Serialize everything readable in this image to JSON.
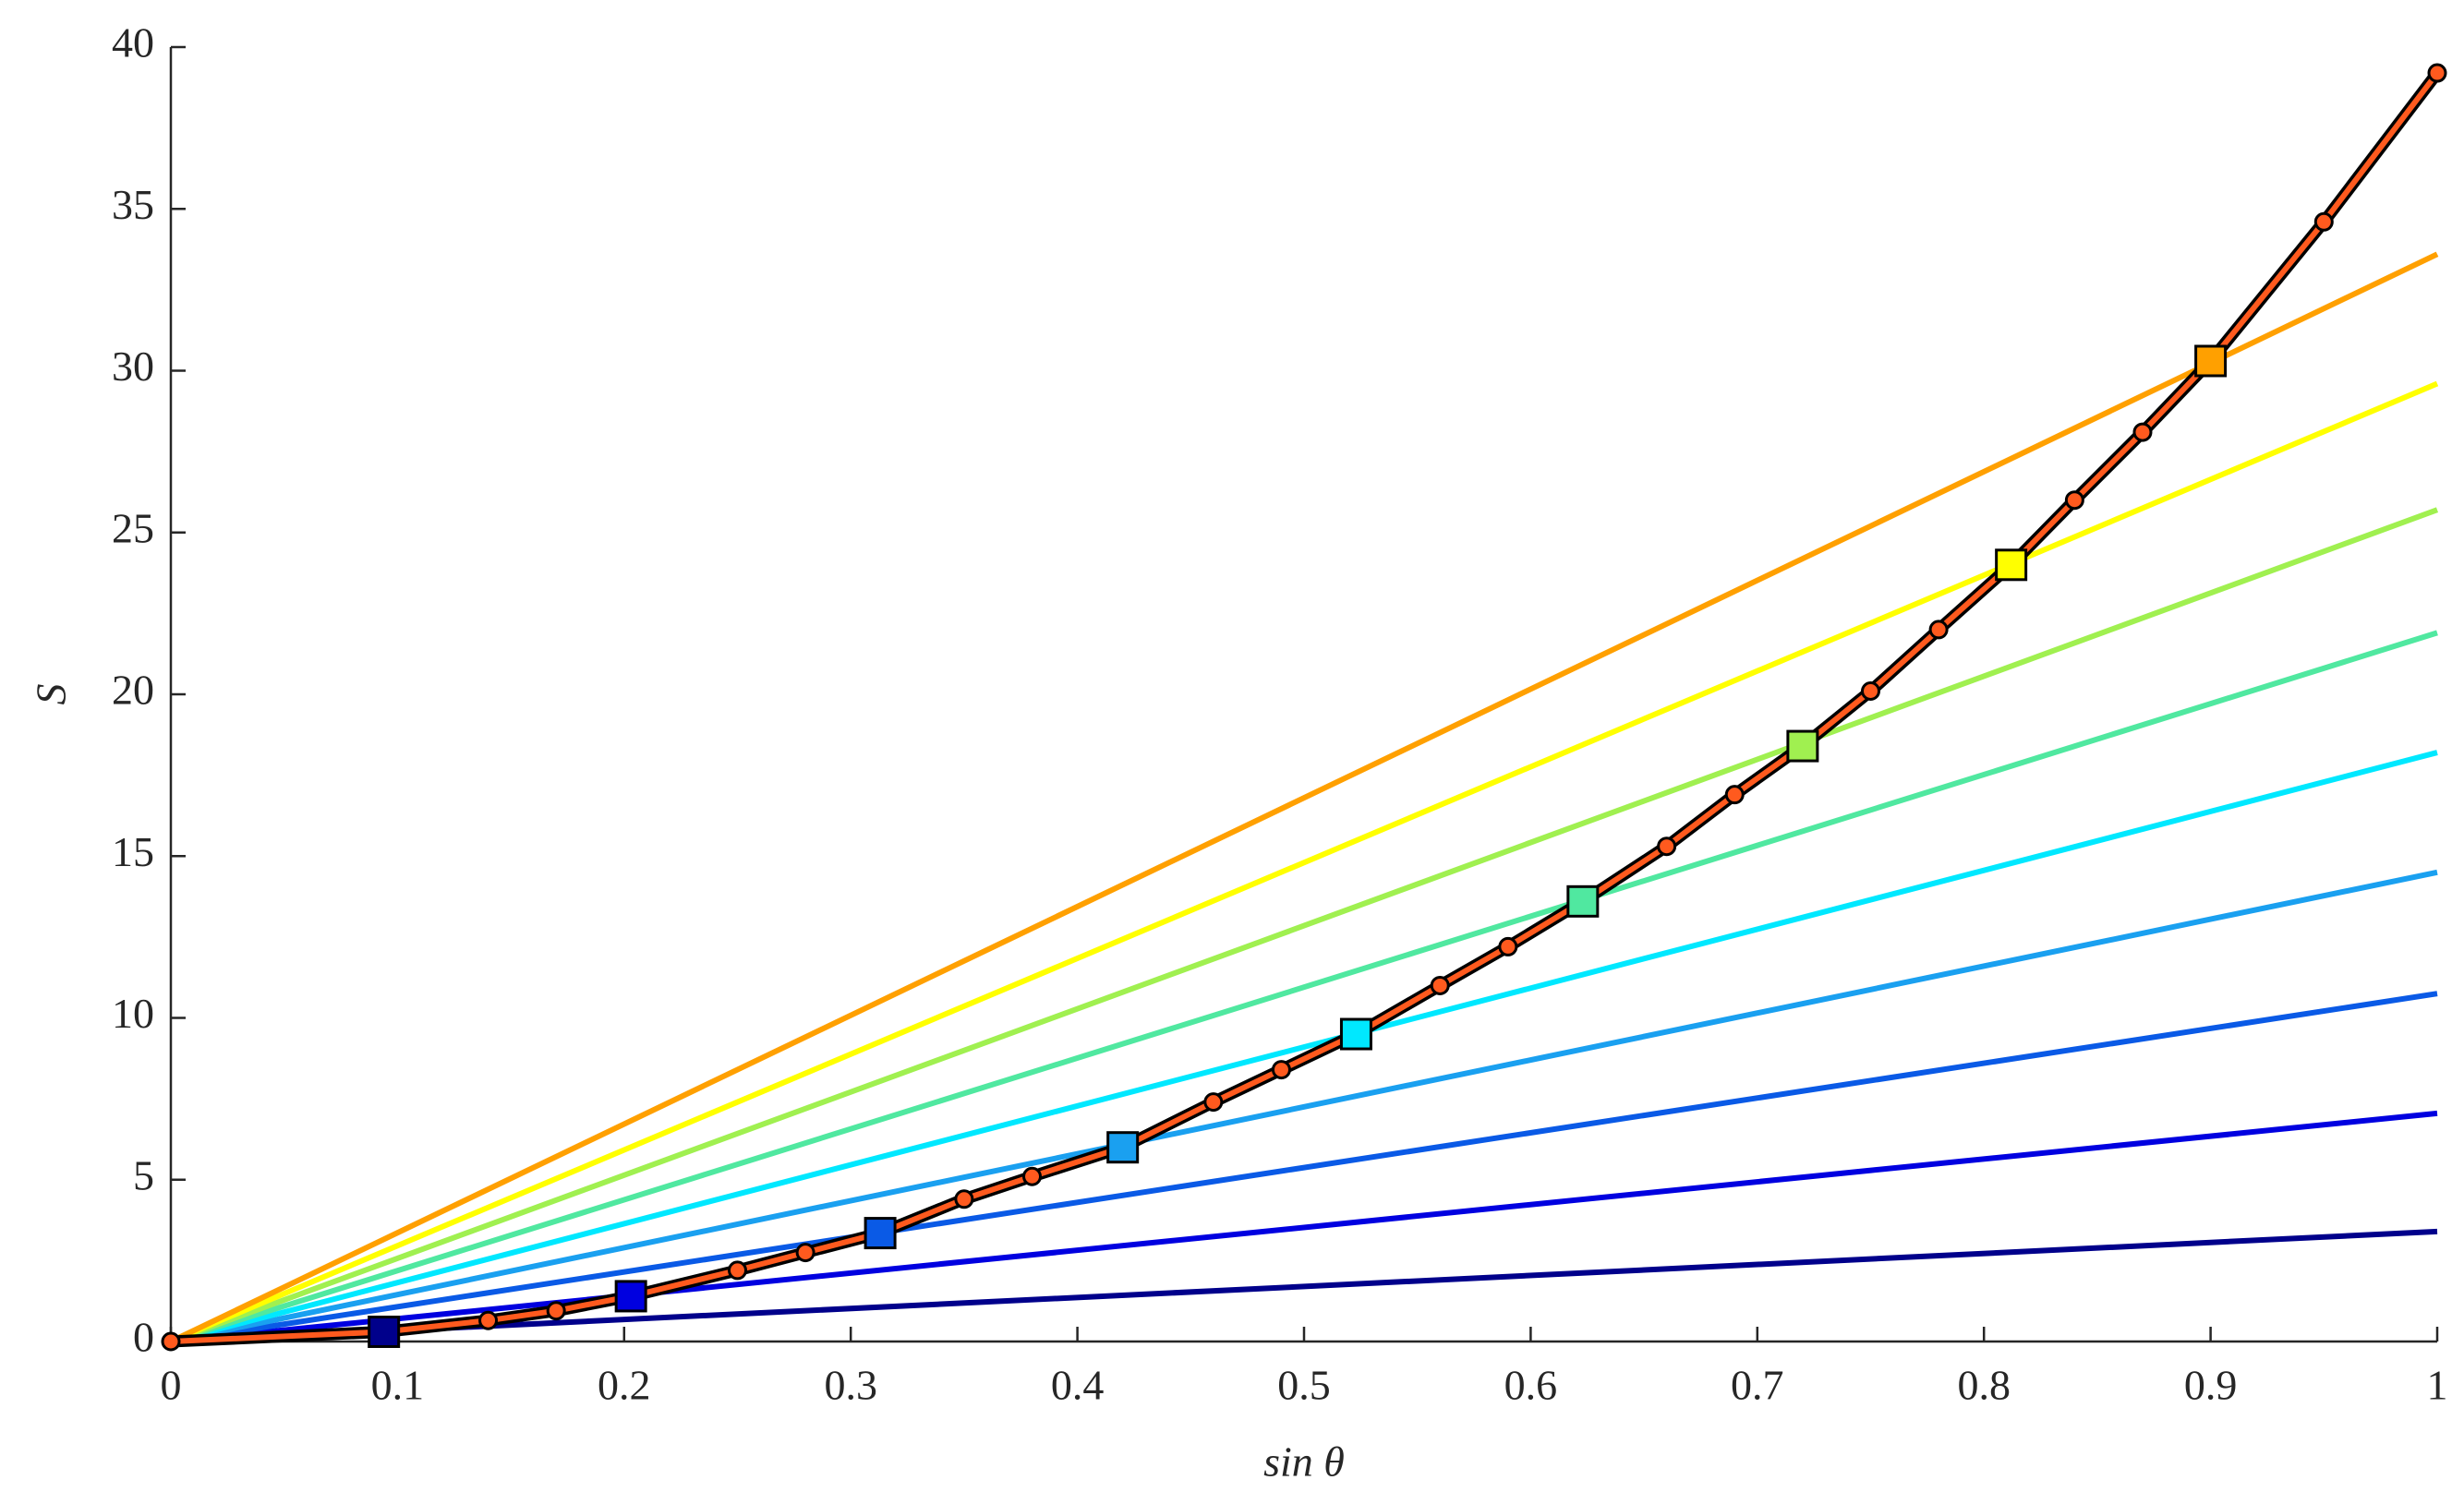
{
  "chart_data": {
    "type": "line",
    "xlabel": "sin θ",
    "ylabel": "S",
    "xlim": [
      0,
      1
    ],
    "xticks": [
      0,
      0.1,
      0.2,
      0.3,
      0.4,
      0.5,
      0.6,
      0.7,
      0.8,
      0.9,
      1
    ],
    "ylim": [
      0,
      40
    ],
    "yticks": [
      0,
      5,
      10,
      15,
      20,
      25,
      30,
      35,
      40
    ],
    "series": [
      {
        "color": "#00008b",
        "x": [
          0,
          1
        ],
        "values": [
          0,
          3.4
        ]
      },
      {
        "color": "#0000e0",
        "x": [
          0,
          1
        ],
        "values": [
          0,
          7.05
        ]
      },
      {
        "color": "#0a5ae6",
        "x": [
          0,
          1
        ],
        "values": [
          0,
          10.75
        ]
      },
      {
        "color": "#1aa0f0",
        "x": [
          0,
          1
        ],
        "values": [
          0,
          14.5
        ]
      },
      {
        "color": "#00e8ff",
        "x": [
          0,
          1
        ],
        "values": [
          0,
          18.2
        ]
      },
      {
        "color": "#50e8a0",
        "x": [
          0,
          1
        ],
        "values": [
          0,
          21.9
        ]
      },
      {
        "color": "#a0f050",
        "x": [
          0,
          1
        ],
        "values": [
          0,
          25.7
        ]
      },
      {
        "color": "#ffff00",
        "x": [
          0,
          1
        ],
        "values": [
          0,
          29.6
        ]
      },
      {
        "color": "#ffa000",
        "x": [
          0,
          1
        ],
        "values": [
          0,
          33.6
        ]
      },
      {
        "color": "#ff5a1e",
        "outline": true,
        "marker": "circle",
        "x": [
          0,
          0.094,
          0.14,
          0.17,
          0.203,
          0.25,
          0.28,
          0.313,
          0.35,
          0.38,
          0.42,
          0.46,
          0.49,
          0.523,
          0.56,
          0.59,
          0.623,
          0.66,
          0.69,
          0.72,
          0.75,
          0.78,
          0.812,
          0.84,
          0.87,
          0.9,
          0.95,
          1
        ],
        "values": [
          0,
          0.3,
          0.65,
          0.95,
          1.4,
          2.2,
          2.75,
          3.35,
          4.4,
          5.1,
          6.0,
          7.4,
          8.4,
          9.5,
          11.0,
          12.2,
          13.6,
          15.3,
          16.9,
          18.4,
          20.1,
          22.0,
          24.0,
          26.0,
          28.1,
          30.3,
          34.6,
          39.2
        ]
      },
      {
        "marker": "square",
        "line": false,
        "colors": [
          "#00008b",
          "#0000e0",
          "#0a5ae6",
          "#1aa0f0",
          "#00e8ff",
          "#50e8a0",
          "#a0f050",
          "#ffff00",
          "#ffa000"
        ],
        "x": [
          0.094,
          0.203,
          0.313,
          0.42,
          0.523,
          0.623,
          0.72,
          0.812,
          0.9
        ],
        "values": [
          0.3,
          1.4,
          3.35,
          6.0,
          9.5,
          13.6,
          18.4,
          24.0,
          30.3
        ]
      }
    ]
  }
}
